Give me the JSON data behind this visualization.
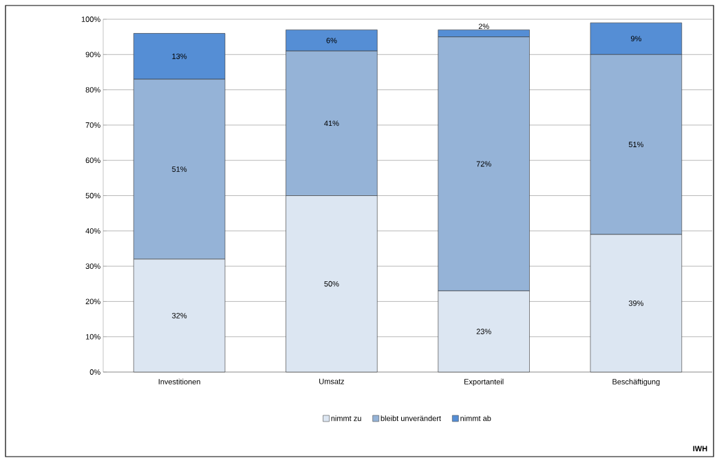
{
  "chart_data": {
    "type": "bar",
    "stacked": true,
    "categories": [
      "Investitionen",
      "Umsatz",
      "Exportanteil",
      "Beschäftigung"
    ],
    "series": [
      {
        "name": "nimmt zu",
        "color": "#dce6f2",
        "values": [
          32,
          50,
          23,
          39
        ],
        "value_labels": [
          "32%",
          "50%",
          "23%",
          "39%"
        ]
      },
      {
        "name": "bleibt unverändert",
        "color": "#95b3d7",
        "values": [
          51,
          41,
          72,
          51
        ],
        "value_labels": [
          "51%",
          "41%",
          "72%",
          "51%"
        ]
      },
      {
        "name": "nimmt ab",
        "color": "#558ed5",
        "values": [
          13,
          6,
          2,
          9
        ],
        "value_labels": [
          "13%",
          "6%",
          "2%",
          "9%"
        ]
      }
    ],
    "ylim": [
      0,
      100
    ],
    "yticks": [
      {
        "value": 0,
        "label": "0%"
      },
      {
        "value": 10,
        "label": "10%"
      },
      {
        "value": 20,
        "label": "20%"
      },
      {
        "value": 30,
        "label": "30%"
      },
      {
        "value": 40,
        "label": "40%"
      },
      {
        "value": 50,
        "label": "50%"
      },
      {
        "value": 60,
        "label": "60%"
      },
      {
        "value": 70,
        "label": "70%"
      },
      {
        "value": 80,
        "label": "80%"
      },
      {
        "value": 90,
        "label": "90%"
      },
      {
        "value": 100,
        "label": "100%"
      }
    ],
    "grid": "y",
    "legend": "bottom",
    "annotations": [
      "IWH"
    ]
  }
}
